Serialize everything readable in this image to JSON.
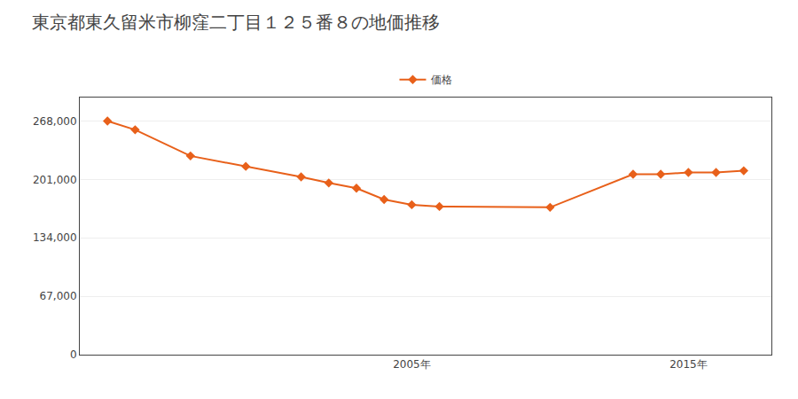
{
  "chart_data": {
    "type": "line",
    "title": "東京都東久留米市柳窪二丁目１２５番８の地価推移",
    "x": [
      1994,
      1995,
      1997,
      1999,
      2001,
      2002,
      2003,
      2004,
      2005,
      2006,
      2010,
      2013,
      2014,
      2015,
      2016,
      2017
    ],
    "series": [
      {
        "name": "価格",
        "color": "#e8601a",
        "values": [
          268000,
          258000,
          228000,
          216000,
          204000,
          197000,
          191000,
          178000,
          172000,
          170000,
          169000,
          207000,
          207000,
          209000,
          209000,
          211000
        ]
      }
    ],
    "xlim": [
      1993,
      2018
    ],
    "xticks": [
      {
        "value": 2005,
        "label": "2005年"
      },
      {
        "value": 2015,
        "label": "2015年"
      }
    ],
    "ylim": [
      0,
      295000
    ],
    "yticks": [
      0,
      {
        "value": 67000,
        "label": "67,000"
      },
      {
        "value": 134000,
        "label": "134,000"
      },
      {
        "value": 201000,
        "label": "201,000"
      },
      {
        "value": 268000,
        "label": "268,000"
      }
    ],
    "grid": true,
    "marker": "diamond",
    "legend": "top"
  }
}
